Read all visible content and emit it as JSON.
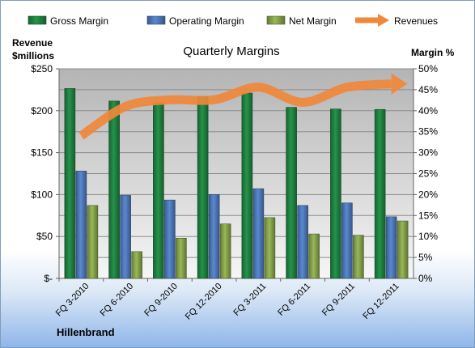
{
  "chart_data": {
    "type": "bar",
    "title": "Quarterly Margins",
    "company": "Hillenbrand",
    "left_axis_label": [
      "Revenue",
      "$millions"
    ],
    "right_axis_label": "Margin %",
    "categories": [
      "FQ 3-2010",
      "FQ 6-2010",
      "FQ 9-2010",
      "FQ 12-2010",
      "FQ 3-2011",
      "FQ 6-2011",
      "FQ 9-2011",
      "FQ 12-2011"
    ],
    "left_ticks": [
      "$-",
      "$50",
      "$100",
      "$150",
      "$200",
      "$250"
    ],
    "right_ticks": [
      "0%",
      "5%",
      "10%",
      "15%",
      "20%",
      "25%",
      "30%",
      "35%",
      "40%",
      "45%",
      "50%"
    ],
    "ylim_left": [
      0,
      250
    ],
    "ylim_right": [
      0,
      50
    ],
    "legend_position": "top",
    "gridlines": true,
    "series": [
      {
        "name": "Gross Margin",
        "kind": "bar",
        "axis": "right",
        "color": "#1e7b3e",
        "values": [
          45.3,
          42.3,
          41.9,
          43.4,
          44.2,
          40.8,
          40.4,
          40.3
        ]
      },
      {
        "name": "Operating Margin",
        "kind": "bar",
        "axis": "right",
        "color": "#4a72b0",
        "values": [
          25.6,
          19.8,
          18.7,
          20.0,
          21.4,
          17.4,
          18.0,
          14.7
        ]
      },
      {
        "name": "Net Margin",
        "kind": "bar",
        "axis": "right",
        "color": "#7f9a48",
        "values": [
          17.4,
          6.4,
          9.6,
          13.0,
          14.5,
          10.6,
          10.3,
          13.7
        ]
      },
      {
        "name": "Revenues",
        "kind": "line",
        "axis": "left",
        "color": "#f0883a",
        "values": [
          170,
          205,
          213,
          213,
          228,
          210,
          228,
          232
        ]
      }
    ]
  }
}
